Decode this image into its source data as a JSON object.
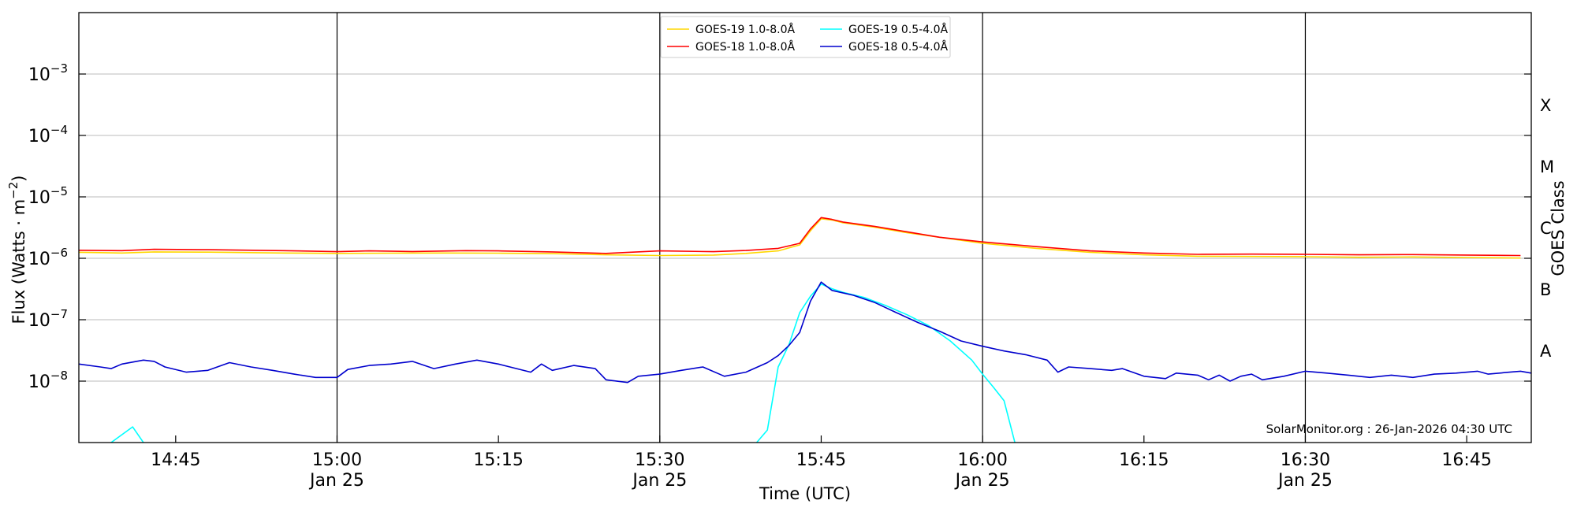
{
  "chart_data": {
    "type": "line",
    "title": "",
    "xlabel": "Time (UTC)",
    "ylabel": "Flux (Watts · m",
    "ylabel_exp": "−2",
    "ylabel_close": ")",
    "ylabel_right": "GOES Class",
    "y_scale": "log",
    "ylim": [
      1e-09,
      0.01
    ],
    "xlim": [
      "14:36",
      "16:51"
    ],
    "x_ticks": [
      {
        "time": "14:45",
        "label": "14:45",
        "date": ""
      },
      {
        "time": "15:00",
        "label": "15:00",
        "date": "Jan 25"
      },
      {
        "time": "15:15",
        "label": "15:15",
        "date": ""
      },
      {
        "time": "15:30",
        "label": "15:30",
        "date": "Jan 25"
      },
      {
        "time": "15:45",
        "label": "15:45",
        "date": ""
      },
      {
        "time": "16:00",
        "label": "16:00",
        "date": "Jan 25"
      },
      {
        "time": "16:15",
        "label": "16:15",
        "date": ""
      },
      {
        "time": "16:30",
        "label": "16:30",
        "date": "Jan 25"
      },
      {
        "time": "16:45",
        "label": "16:45",
        "date": ""
      }
    ],
    "vertical_lines": [
      "15:00",
      "15:30",
      "16:00",
      "16:30"
    ],
    "y_ticks": [
      {
        "value": 1e-08,
        "base": "10",
        "exp": "−8"
      },
      {
        "value": 1e-07,
        "base": "10",
        "exp": "−7"
      },
      {
        "value": 1e-06,
        "base": "10",
        "exp": "−6"
      },
      {
        "value": 1e-05,
        "base": "10",
        "exp": "−5"
      },
      {
        "value": 0.0001,
        "base": "10",
        "exp": "−4"
      },
      {
        "value": 0.001,
        "base": "10",
        "exp": "−3"
      }
    ],
    "grid": "horizontal",
    "goes_classes": [
      {
        "label": "A",
        "value": 3.16e-08
      },
      {
        "label": "B",
        "value": 3.16e-07
      },
      {
        "label": "C",
        "value": 3.16e-06
      },
      {
        "label": "M",
        "value": 3.16e-05
      },
      {
        "label": "X",
        "value": 0.000316
      }
    ],
    "legend": {
      "placement": "top-center",
      "entries": [
        {
          "name": "GOES-19 1.0-8.0Å",
          "color": "#ffd700"
        },
        {
          "name": "GOES-18 1.0-8.0Å",
          "color": "#ff0000"
        },
        {
          "name": "GOES-19 0.5-4.0Å",
          "color": "#00ffff"
        },
        {
          "name": "GOES-18 0.5-4.0Å",
          "color": "#0000cd"
        }
      ]
    },
    "series": [
      {
        "name": "GOES-19 1.0-8.0Å",
        "color": "#ffd700",
        "points": [
          [
            "14:36",
            1.25e-06
          ],
          [
            "14:40",
            1.22e-06
          ],
          [
            "14:43",
            1.27e-06
          ],
          [
            "14:48",
            1.26e-06
          ],
          [
            "14:55",
            1.22e-06
          ],
          [
            "15:00",
            1.2e-06
          ],
          [
            "15:05",
            1.21e-06
          ],
          [
            "15:10",
            1.22e-06
          ],
          [
            "15:15",
            1.21e-06
          ],
          [
            "15:20",
            1.19e-06
          ],
          [
            "15:25",
            1.14e-06
          ],
          [
            "15:30",
            1.11e-06
          ],
          [
            "15:35",
            1.13e-06
          ],
          [
            "15:38",
            1.2e-06
          ],
          [
            "15:41",
            1.32e-06
          ],
          [
            "15:43",
            1.65e-06
          ],
          [
            "15:44",
            2.8e-06
          ],
          [
            "15:45",
            4.4e-06
          ],
          [
            "15:46",
            4.2e-06
          ],
          [
            "15:47",
            3.8e-06
          ],
          [
            "15:50",
            3.2e-06
          ],
          [
            "15:53",
            2.6e-06
          ],
          [
            "15:56",
            2.2e-06
          ],
          [
            "16:00",
            1.75e-06
          ],
          [
            "16:05",
            1.45e-06
          ],
          [
            "16:10",
            1.25e-06
          ],
          [
            "16:15",
            1.14e-06
          ],
          [
            "16:20",
            1.08e-06
          ],
          [
            "16:25",
            1.07e-06
          ],
          [
            "16:30",
            1.06e-06
          ],
          [
            "16:35",
            1.04e-06
          ],
          [
            "16:40",
            1.05e-06
          ],
          [
            "16:45",
            1.03e-06
          ],
          [
            "16:50",
            1.01e-06
          ]
        ]
      },
      {
        "name": "GOES-18 1.0-8.0Å",
        "color": "#ff0000",
        "points": [
          [
            "14:36",
            1.35e-06
          ],
          [
            "14:40",
            1.33e-06
          ],
          [
            "14:43",
            1.4e-06
          ],
          [
            "14:48",
            1.38e-06
          ],
          [
            "14:55",
            1.33e-06
          ],
          [
            "15:00",
            1.28e-06
          ],
          [
            "15:03",
            1.32e-06
          ],
          [
            "15:07",
            1.29e-06
          ],
          [
            "15:12",
            1.33e-06
          ],
          [
            "15:15",
            1.32e-06
          ],
          [
            "15:20",
            1.27e-06
          ],
          [
            "15:25",
            1.2e-06
          ],
          [
            "15:30",
            1.32e-06
          ],
          [
            "15:35",
            1.28e-06
          ],
          [
            "15:38",
            1.34e-06
          ],
          [
            "15:41",
            1.45e-06
          ],
          [
            "15:43",
            1.75e-06
          ],
          [
            "15:44",
            3e-06
          ],
          [
            "15:45",
            4.6e-06
          ],
          [
            "15:46",
            4.3e-06
          ],
          [
            "15:47",
            3.9e-06
          ],
          [
            "15:50",
            3.3e-06
          ],
          [
            "15:53",
            2.7e-06
          ],
          [
            "15:56",
            2.2e-06
          ],
          [
            "16:00",
            1.85e-06
          ],
          [
            "16:05",
            1.55e-06
          ],
          [
            "16:10",
            1.32e-06
          ],
          [
            "16:15",
            1.22e-06
          ],
          [
            "16:20",
            1.16e-06
          ],
          [
            "16:25",
            1.17e-06
          ],
          [
            "16:30",
            1.16e-06
          ],
          [
            "16:35",
            1.14e-06
          ],
          [
            "16:40",
            1.15e-06
          ],
          [
            "16:45",
            1.13e-06
          ],
          [
            "16:50",
            1.11e-06
          ]
        ]
      },
      {
        "name": "GOES-19 0.5-4.0Å",
        "color": "#00ffff",
        "points": [
          [
            "14:39",
            1e-09
          ],
          [
            "14:41",
            1.8e-09
          ],
          [
            "14:42",
            1e-09
          ],
          [
            "15:39",
            1e-09
          ],
          [
            "15:40",
            1.6e-09
          ],
          [
            "15:41",
            1.7e-08
          ],
          [
            "15:42",
            3.9e-08
          ],
          [
            "15:43",
            1.3e-07
          ],
          [
            "15:44",
            2.4e-07
          ],
          [
            "15:45",
            3.8e-07
          ],
          [
            "15:46",
            3.2e-07
          ],
          [
            "15:47",
            2.8e-07
          ],
          [
            "15:49",
            2.3e-07
          ],
          [
            "15:51",
            1.7e-07
          ],
          [
            "15:53",
            1.2e-07
          ],
          [
            "15:55",
            8e-08
          ],
          [
            "15:57",
            4.5e-08
          ],
          [
            "15:59",
            2.2e-08
          ],
          [
            "16:00",
            1.3e-08
          ],
          [
            "16:01",
            8e-09
          ],
          [
            "16:02",
            4.8e-09
          ],
          [
            "16:03",
            1e-09
          ]
        ]
      },
      {
        "name": "GOES-18 0.5-4.0Å",
        "color": "#0000cd",
        "points": [
          [
            "14:36",
            1.9e-08
          ],
          [
            "14:38",
            1.7e-08
          ],
          [
            "14:39",
            1.6e-08
          ],
          [
            "14:40",
            1.9e-08
          ],
          [
            "14:42",
            2.2e-08
          ],
          [
            "14:43",
            2.1e-08
          ],
          [
            "14:44",
            1.7e-08
          ],
          [
            "14:46",
            1.4e-08
          ],
          [
            "14:48",
            1.5e-08
          ],
          [
            "14:50",
            2e-08
          ],
          [
            "14:52",
            1.7e-08
          ],
          [
            "14:54",
            1.5e-08
          ],
          [
            "14:56",
            1.3e-08
          ],
          [
            "14:58",
            1.15e-08
          ],
          [
            "15:00",
            1.15e-08
          ],
          [
            "15:01",
            1.55e-08
          ],
          [
            "15:03",
            1.8e-08
          ],
          [
            "15:05",
            1.9e-08
          ],
          [
            "15:07",
            2.1e-08
          ],
          [
            "15:09",
            1.6e-08
          ],
          [
            "15:11",
            1.9e-08
          ],
          [
            "15:13",
            2.2e-08
          ],
          [
            "15:15",
            1.9e-08
          ],
          [
            "15:18",
            1.4e-08
          ],
          [
            "15:19",
            1.9e-08
          ],
          [
            "15:20",
            1.5e-08
          ],
          [
            "15:22",
            1.8e-08
          ],
          [
            "15:24",
            1.6e-08
          ],
          [
            "15:25",
            1.05e-08
          ],
          [
            "15:27",
            9.5e-09
          ],
          [
            "15:28",
            1.2e-08
          ],
          [
            "15:30",
            1.3e-08
          ],
          [
            "15:32",
            1.5e-08
          ],
          [
            "15:34",
            1.7e-08
          ],
          [
            "15:36",
            1.2e-08
          ],
          [
            "15:38",
            1.4e-08
          ],
          [
            "15:40",
            2e-08
          ],
          [
            "15:41",
            2.6e-08
          ],
          [
            "15:42",
            3.8e-08
          ],
          [
            "15:43",
            6.2e-08
          ],
          [
            "15:44",
            2e-07
          ],
          [
            "15:45",
            4.1e-07
          ],
          [
            "15:46",
            3e-07
          ],
          [
            "15:48",
            2.5e-07
          ],
          [
            "15:50",
            1.9e-07
          ],
          [
            "15:52",
            1.3e-07
          ],
          [
            "15:54",
            9e-08
          ],
          [
            "15:56",
            6.5e-08
          ],
          [
            "15:58",
            4.5e-08
          ],
          [
            "16:00",
            3.7e-08
          ],
          [
            "16:02",
            3.1e-08
          ],
          [
            "16:04",
            2.7e-08
          ],
          [
            "16:06",
            2.2e-08
          ],
          [
            "16:07",
            1.4e-08
          ],
          [
            "16:08",
            1.7e-08
          ],
          [
            "16:10",
            1.6e-08
          ],
          [
            "16:12",
            1.5e-08
          ],
          [
            "16:13",
            1.6e-08
          ],
          [
            "16:15",
            1.2e-08
          ],
          [
            "16:17",
            1.1e-08
          ],
          [
            "16:18",
            1.35e-08
          ],
          [
            "16:20",
            1.25e-08
          ],
          [
            "16:21",
            1.05e-08
          ],
          [
            "16:22",
            1.25e-08
          ],
          [
            "16:23",
            1e-08
          ],
          [
            "16:24",
            1.2e-08
          ],
          [
            "16:25",
            1.3e-08
          ],
          [
            "16:26",
            1.05e-08
          ],
          [
            "16:28",
            1.2e-08
          ],
          [
            "16:30",
            1.45e-08
          ],
          [
            "16:32",
            1.35e-08
          ],
          [
            "16:34",
            1.25e-08
          ],
          [
            "16:36",
            1.15e-08
          ],
          [
            "16:38",
            1.25e-08
          ],
          [
            "16:40",
            1.15e-08
          ],
          [
            "16:42",
            1.3e-08
          ],
          [
            "16:44",
            1.35e-08
          ],
          [
            "16:46",
            1.45e-08
          ],
          [
            "16:47",
            1.3e-08
          ],
          [
            "16:49",
            1.4e-08
          ],
          [
            "16:50",
            1.45e-08
          ],
          [
            "16:51",
            1.35e-08
          ]
        ]
      }
    ],
    "annotation": "SolarMonitor.org : 26-Jan-2026 04:30 UTC"
  }
}
